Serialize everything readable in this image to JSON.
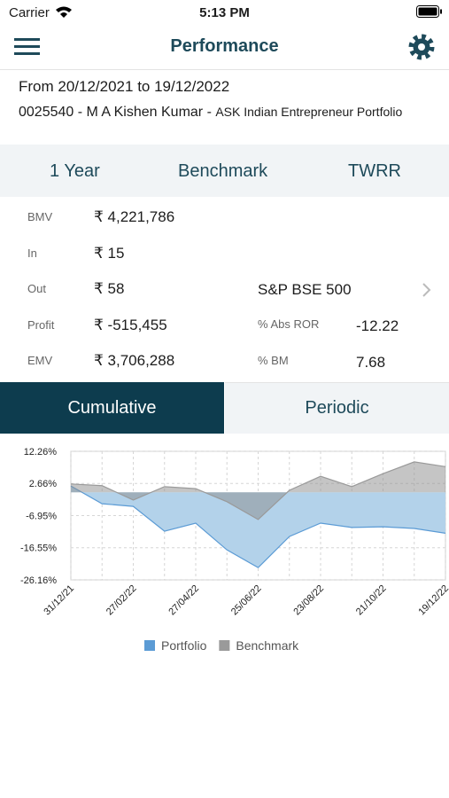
{
  "status_bar": {
    "carrier": "Carrier",
    "time": "5:13 PM"
  },
  "nav": {
    "title": "Performance"
  },
  "header": {
    "period": "From 20/12/2021 to 19/12/2022",
    "account": "0025540 - M A Kishen Kumar - ",
    "portfolio": "ASK Indian Entrepreneur Portfolio"
  },
  "tabs": [
    "1 Year",
    "Benchmark",
    "TWRR"
  ],
  "stats": {
    "left": [
      {
        "label": "BMV",
        "value": "₹ 4,221,786"
      },
      {
        "label": "In",
        "value": "₹ 15"
      },
      {
        "label": "Out",
        "value": "₹ 58"
      },
      {
        "label": "Profit",
        "value": "₹ -515,455"
      },
      {
        "label": "EMV",
        "value": "₹ 3,706,288"
      }
    ],
    "benchmark": "S&P BSE 500",
    "right": [
      {
        "label": "% Abs ROR",
        "value": "-12.22"
      },
      {
        "label": "% BM",
        "value": "7.68"
      }
    ]
  },
  "segments": [
    "Cumulative",
    "Periodic"
  ],
  "chart_data": {
    "type": "area",
    "categories": [
      "31/12/21",
      null,
      "27/02/22",
      null,
      "27/04/22",
      null,
      "25/06/22",
      null,
      "23/08/22",
      null,
      "21/10/22",
      null,
      "19/12/22"
    ],
    "series": [
      {
        "name": "Portfolio",
        "color": "#5b9bd5",
        "fill": "#b3d2ea",
        "values": [
          1.9,
          -3.4,
          -4.2,
          -11.6,
          -9.2,
          -17.2,
          -22.5,
          -13.2,
          -9.2,
          -10.5,
          -10.3,
          -10.8,
          -12.22
        ]
      },
      {
        "name": "Benchmark",
        "color": "#9a9a9a",
        "fill": "#8c8c8c",
        "values": [
          2.5,
          2.0,
          -2.3,
          1.7,
          1.1,
          -2.8,
          -8.1,
          0.6,
          4.8,
          1.7,
          5.6,
          9.1,
          7.68
        ]
      }
    ],
    "ylim": [
      -26.16,
      12.26
    ],
    "yticks": [
      {
        "value": 12.26,
        "label": "12.26%"
      },
      {
        "value": 2.66,
        "label": "2.66%"
      },
      {
        "value": -6.95,
        "label": "-6.95%"
      },
      {
        "value": -16.55,
        "label": "-16.55%"
      },
      {
        "value": -26.16,
        "label": "-26.16%"
      }
    ],
    "grid": true,
    "legend": "bottom"
  }
}
